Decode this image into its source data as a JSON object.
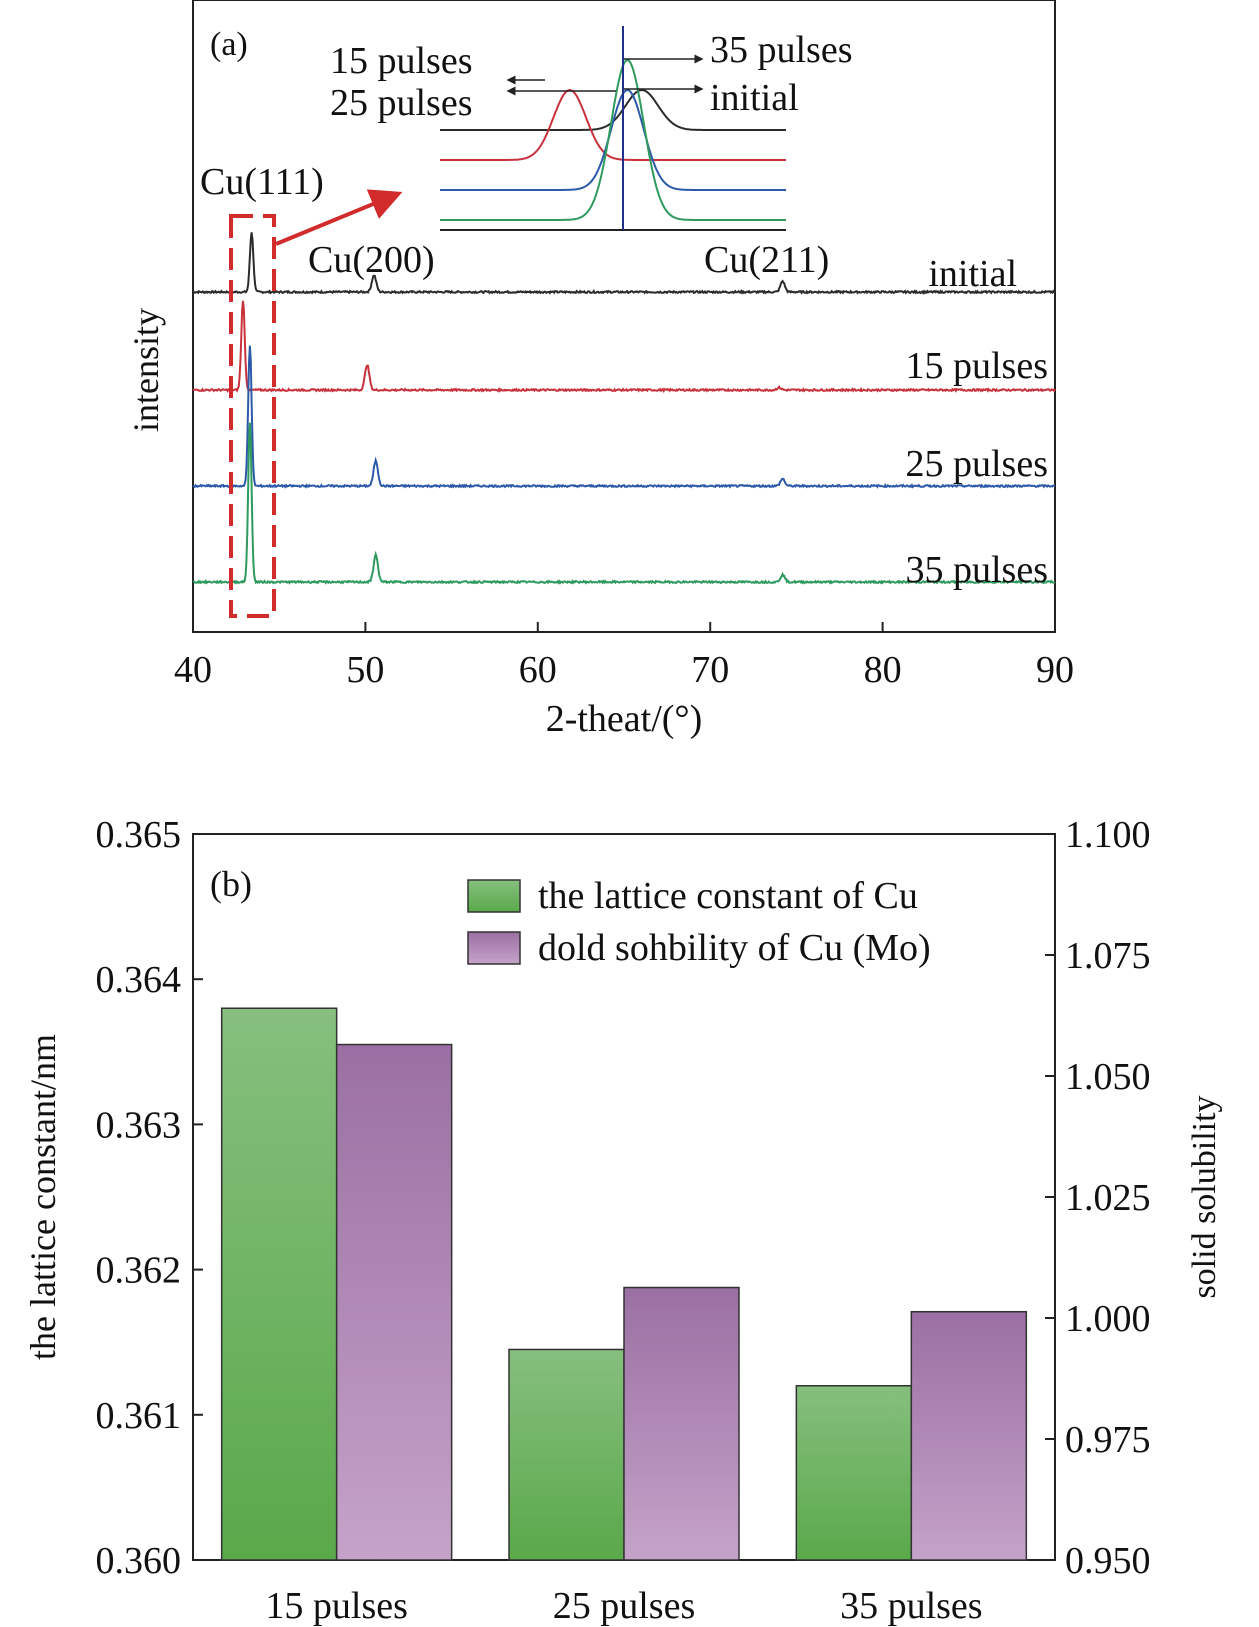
{
  "panel_a": {
    "label": "(a)",
    "xlabel": "2-theat/(°)",
    "ylabel": "intensity",
    "annotations": {
      "cu111": "Cu(111)",
      "cu200": "Cu(200)",
      "cu211": "Cu(211)"
    },
    "inset_labels": {
      "p15": "15 pulses",
      "p25": "25 pulses",
      "p35": "35 pulses",
      "initial": "initial"
    },
    "colors": {
      "initial": "#2b2b2b",
      "p15": "#c8323c",
      "p25": "#2d5aa8",
      "p35": "#2e9a5e",
      "highlight": "#d12b2b",
      "refline": "#1f2f8a"
    }
  },
  "panel_b": {
    "label": "(b)",
    "legend": [
      "the lattice constant of Cu",
      "dold sohbility of Cu (Mo)"
    ],
    "ylabel_left": "the lattice constant/nm",
    "ylabel_right": "solid solubility"
  },
  "chart_data": [
    {
      "type": "line",
      "xlabel": "2-theat/(°)",
      "ylabel": "intensity",
      "xlim": [
        40,
        90
      ],
      "xticks": [
        40,
        50,
        60,
        70,
        80,
        90
      ],
      "series": [
        {
          "name": "initial",
          "peaks": [
            [
              43.4,
              1.0
            ],
            [
              50.5,
              0.28
            ],
            [
              74.2,
              0.18
            ]
          ]
        },
        {
          "name": "15 pulses",
          "peaks": [
            [
              42.9,
              1.5
            ],
            [
              50.1,
              0.42
            ],
            [
              74.0,
              0.04
            ]
          ]
        },
        {
          "name": "25 pulses",
          "peaks": [
            [
              43.3,
              2.35
            ],
            [
              50.6,
              0.42
            ],
            [
              74.2,
              0.12
            ]
          ]
        },
        {
          "name": "35 pulses",
          "peaks": [
            [
              43.3,
              2.65
            ],
            [
              50.6,
              0.45
            ],
            [
              74.2,
              0.12
            ]
          ]
        }
      ]
    },
    {
      "type": "bar",
      "categories": [
        "15 pulses",
        "25 pulses",
        "35 pulses"
      ],
      "series": [
        {
          "name": "the lattice constant of Cu",
          "axis": "left",
          "values": [
            0.3638,
            0.36145,
            0.3612
          ]
        },
        {
          "name": "dold sohbility of Cu (Mo)",
          "axis": "right",
          "values": [
            1.0565,
            1.0063,
            1.0013
          ]
        }
      ],
      "ylabel_left": "the lattice constant/nm",
      "ylabel_right": "solid solubility",
      "ylim_left": [
        0.36,
        0.365
      ],
      "yticks_left": [
        "0.360",
        "0.361",
        "0.362",
        "0.363",
        "0.364",
        "0.365"
      ],
      "ylim_right": [
        0.95,
        1.1
      ],
      "yticks_right": [
        "0.950",
        "0.975",
        "1.000",
        "1.025",
        "1.050",
        "1.075",
        "1.100"
      ],
      "legend_position": "top-right"
    }
  ]
}
